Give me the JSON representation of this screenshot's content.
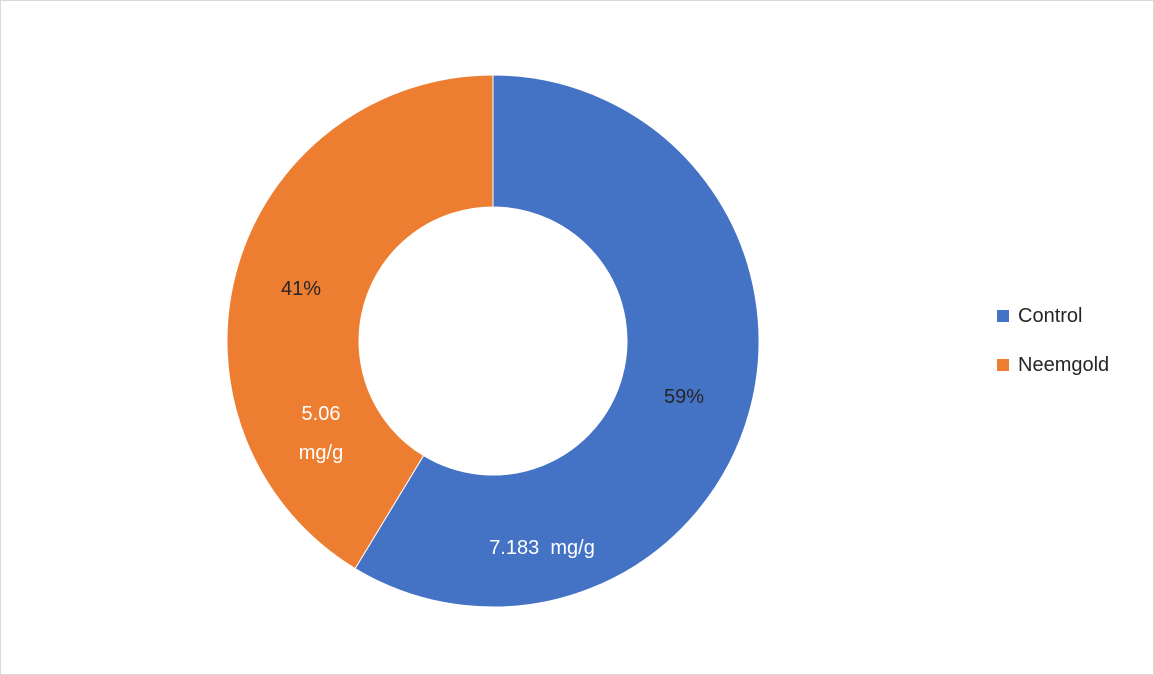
{
  "chart_data": {
    "type": "pie",
    "variant": "donut",
    "title": "",
    "unit": "mg/g",
    "series": [
      {
        "name": "Control",
        "value": 7.183,
        "value_label": "7.183  mg/g",
        "percent_label": "59%",
        "color": "#4472C4",
        "value_label_color": "#ffffff",
        "percent_label_color": "#262626"
      },
      {
        "name": "Neemgold",
        "value": 5.06,
        "value_label": "5.06 mg/g",
        "value_label_lines": [
          "5.06",
          "mg/g"
        ],
        "percent_label": "41%",
        "color": "#ED7D31",
        "value_label_color": "#ffffff",
        "percent_label_color": "#262626"
      }
    ],
    "legend_position": "right",
    "start_angle": "12 o'clock",
    "direction": "clockwise"
  }
}
